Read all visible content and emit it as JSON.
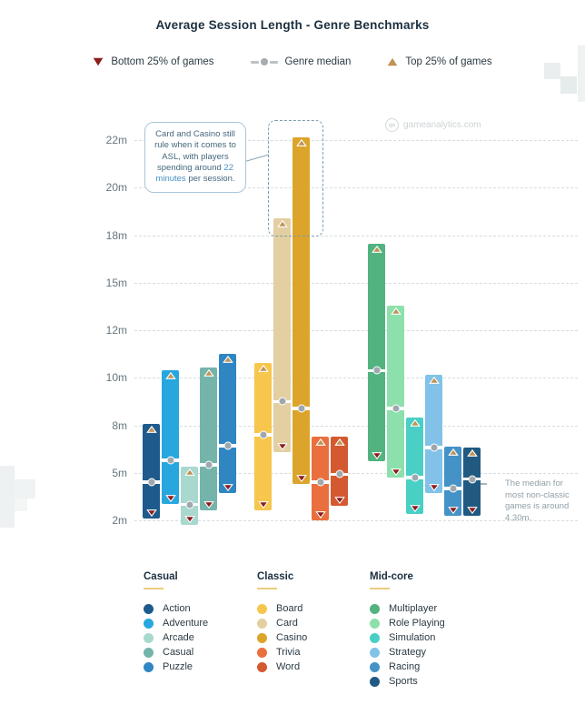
{
  "title": "Average Session Length - Genre Benchmarks",
  "legend_top": {
    "items": [
      {
        "id": "bottom25",
        "label": "Bottom 25% of games",
        "color": "#8c1f1f",
        "icon": "triangle-down"
      },
      {
        "id": "median",
        "label": "Genre median",
        "color": "#a5adb2",
        "icon": "dash-dot-dash"
      },
      {
        "id": "top25",
        "label": "Top 25% of games",
        "color": "#bf9352",
        "icon": "triangle-up"
      }
    ]
  },
  "watermark": {
    "text": "gameanalytics.com",
    "logo": "ga"
  },
  "annotation_box": {
    "text_before": "Card and Casino still rule when it comes to ASL, with players spending around ",
    "highlight": "22 minutes",
    "text_after": " per session.",
    "highlight_color": "#4a90c4"
  },
  "side_note": {
    "text": "The median for most non-classic games is around 4.30m."
  },
  "chart_data": {
    "type": "floating-bar",
    "title": "Average Session Length - Genre Benchmarks",
    "unit": "minutes",
    "ylabel": "session length (minutes)",
    "yticks": [
      22,
      20,
      18,
      15,
      12,
      10,
      8,
      5,
      2
    ],
    "ytick_labels": [
      "22m",
      "20m",
      "18m",
      "15m",
      "12m",
      "10m",
      "8m",
      "5m",
      "2m"
    ],
    "grid": "horizontal-dashed",
    "marker_meaning": {
      "high": "Top 25% of games",
      "median": "Genre median",
      "low": "Bottom 25% of games"
    },
    "groups": [
      {
        "name": "Casual",
        "genres": [
          {
            "name": "Action",
            "color": "#1e5b8c",
            "low": 2.4,
            "median": 4.4,
            "high": 7.9
          },
          {
            "name": "Adventure",
            "color": "#27a7de",
            "low": 3.3,
            "median": 5.8,
            "high": 10.2
          },
          {
            "name": "Arcade",
            "color": "#a9d8cf",
            "low": 2.0,
            "median": 3.0,
            "high": 5.2
          },
          {
            "name": "Casual",
            "color": "#74b4ab",
            "low": 2.9,
            "median": 5.5,
            "high": 10.3
          },
          {
            "name": "Puzzle",
            "color": "#2f86c3",
            "low": 4.0,
            "median": 6.7,
            "high": 10.9
          }
        ]
      },
      {
        "name": "Classic",
        "genres": [
          {
            "name": "Board",
            "color": "#f6c64d",
            "low": 2.9,
            "median": 7.4,
            "high": 10.5
          },
          {
            "name": "Card",
            "color": "#e3cfa1",
            "low": 6.6,
            "median": 9.0,
            "high": 18.6
          },
          {
            "name": "Casino",
            "color": "#dda42b",
            "low": 4.6,
            "median": 8.7,
            "high": 22.0
          },
          {
            "name": "Trivia",
            "color": "#ea6f3e",
            "low": 2.3,
            "median": 4.4,
            "high": 7.1
          },
          {
            "name": "Word",
            "color": "#d45930",
            "low": 3.2,
            "median": 4.9,
            "high": 7.1
          }
        ]
      },
      {
        "name": "Mid-core",
        "genres": [
          {
            "name": "Multiplayer",
            "color": "#52b380",
            "low": 6.0,
            "median": 10.3,
            "high": 17.3
          },
          {
            "name": "Role Playing",
            "color": "#8ce0ac",
            "low": 5.0,
            "median": 8.7,
            "high": 13.4
          },
          {
            "name": "Simulation",
            "color": "#49cfc4",
            "low": 2.7,
            "median": 4.7,
            "high": 8.2
          },
          {
            "name": "Strategy",
            "color": "#82c2e8",
            "low": 4.0,
            "median": 6.6,
            "high": 10.0
          },
          {
            "name": "Racing",
            "color": "#4492c6",
            "low": 2.6,
            "median": 4.0,
            "high": 6.5
          },
          {
            "name": "Sports",
            "color": "#205a80",
            "low": 2.6,
            "median": 4.6,
            "high": 6.4
          }
        ]
      }
    ]
  },
  "colors": {
    "marker_high": "#bf9352",
    "marker_low": "#8c1c1c",
    "median_dot": "#9fa8ad",
    "grid": "#d7dde0",
    "header_underline": "#eccb7d",
    "title_text": "#1c2f3e"
  }
}
